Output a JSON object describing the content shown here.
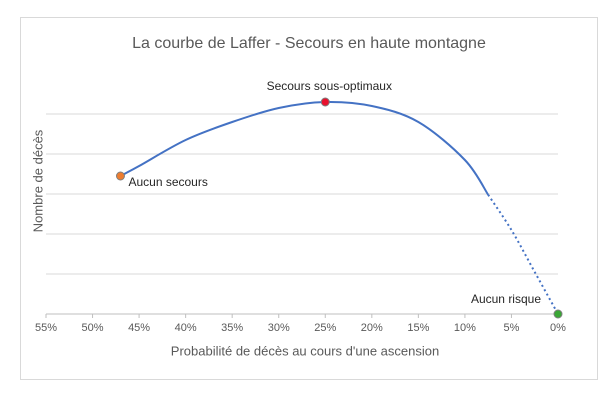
{
  "chart_data": {
    "type": "line",
    "title": "La courbe de Laffer - Secours en haute montagne",
    "x_label": "Probabilité de décès au cours d'une ascension",
    "y_label": "Nombre de décès",
    "x": [
      47,
      45,
      40,
      35,
      30,
      25,
      20,
      15,
      10,
      7.5,
      5,
      2.5,
      0
    ],
    "series": [
      {
        "color": "#4472c4",
        "line_style": "solid",
        "values": [
          3.45,
          3.7,
          4.35,
          4.8,
          5.15,
          5.3,
          5.2,
          4.8,
          3.85,
          2.98,
          null,
          null,
          null
        ]
      },
      {
        "color": "#4472c4",
        "line_style": "dotted",
        "values": [
          null,
          null,
          null,
          null,
          null,
          null,
          null,
          null,
          null,
          2.98,
          2.1,
          1.05,
          0
        ]
      }
    ],
    "points": [
      {
        "label": "Aucun secours",
        "x": 47,
        "y": 3.45,
        "color": "#ed7d31"
      },
      {
        "label": "Secours sous-optimaux",
        "x": 25,
        "y": 5.3,
        "color": "#e8112d"
      },
      {
        "label": "Aucun risque",
        "x": 0,
        "y": 0,
        "color": "#3aa635"
      }
    ],
    "xlim": [
      55,
      0
    ],
    "xticks": [
      {
        "value": 55,
        "label": "55%"
      },
      {
        "value": 50,
        "label": "50%"
      },
      {
        "value": 45,
        "label": "45%"
      },
      {
        "value": 40,
        "label": "40%"
      },
      {
        "value": 35,
        "label": "35%"
      },
      {
        "value": 30,
        "label": "30%"
      },
      {
        "value": 25,
        "label": "25%"
      },
      {
        "value": 20,
        "label": "20%"
      },
      {
        "value": 15,
        "label": "15%"
      },
      {
        "value": 10,
        "label": "10%"
      },
      {
        "value": 5,
        "label": "5%"
      },
      {
        "value": 0,
        "label": "0%"
      }
    ],
    "ylim": [
      0,
      6
    ],
    "yticks": [
      0,
      1,
      2,
      3,
      4,
      5
    ],
    "grid": true
  }
}
